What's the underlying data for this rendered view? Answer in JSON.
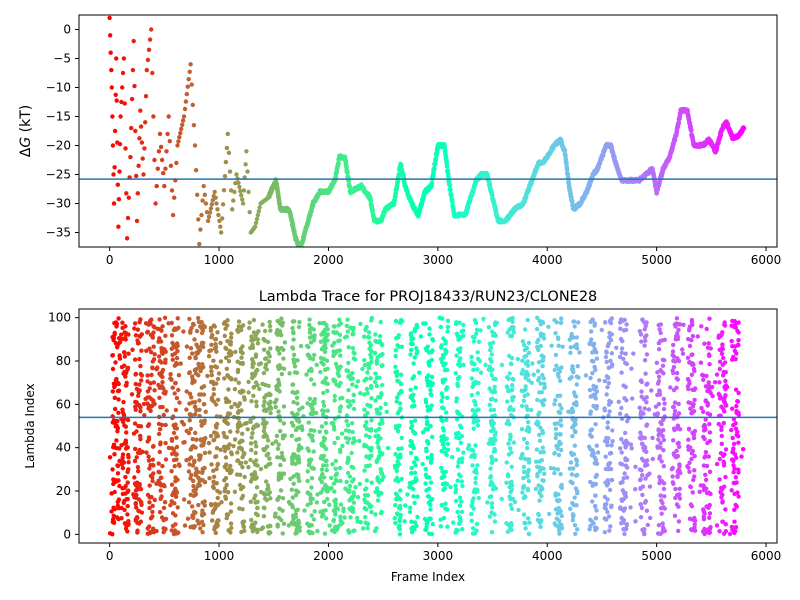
{
  "chart_data": [
    {
      "type": "scatter",
      "title": "",
      "xlabel": "",
      "ylabel": "ΔG (kT)",
      "ylabel_parts": {
        "symbol": "Δ",
        "variable": "G",
        "unit": " (kT)"
      },
      "xlim": [
        -280,
        6100
      ],
      "ylim": [
        -37.5,
        2.5
      ],
      "xticks": [
        0,
        1000,
        2000,
        3000,
        4000,
        5000,
        6000
      ],
      "xtick_labels": [
        "0",
        "1000",
        "2000",
        "3000",
        "4000",
        "5000",
        "6000"
      ],
      "yticks": [
        0,
        -5,
        -10,
        -15,
        -20,
        -25,
        -30,
        -35
      ],
      "ytick_labels": [
        "0",
        "−5",
        "−10",
        "−15",
        "−20",
        "−25",
        "−30",
        "−35"
      ],
      "hline": {
        "y": -25.8,
        "color": "#1f77b4"
      },
      "colormap": "rainbow_r",
      "color_by": "frame index",
      "grid": false,
      "trace_keypoints": [
        [
          0,
          2
        ],
        [
          20,
          -10
        ],
        [
          40,
          -30
        ],
        [
          60,
          -5
        ],
        [
          80,
          -34
        ],
        [
          100,
          -15
        ],
        [
          130,
          -5
        ],
        [
          160,
          -36
        ],
        [
          190,
          -22
        ],
        [
          220,
          -2
        ],
        [
          250,
          -33
        ],
        [
          280,
          -14
        ],
        [
          310,
          -25
        ],
        [
          340,
          -7
        ],
        [
          380,
          0
        ],
        [
          420,
          -30
        ],
        [
          460,
          -18
        ],
        [
          500,
          -27
        ],
        [
          540,
          -15
        ],
        [
          580,
          -32
        ],
        [
          620,
          -20
        ],
        [
          680,
          -15
        ],
        [
          740,
          -6
        ],
        [
          780,
          -20
        ],
        [
          820,
          -37
        ],
        [
          860,
          -27
        ],
        [
          900,
          -33
        ],
        [
          960,
          -28
        ],
        [
          1020,
          -35
        ],
        [
          1080,
          -18
        ],
        [
          1120,
          -31
        ],
        [
          1160,
          -25
        ],
        [
          1220,
          -30
        ],
        [
          1250,
          -21
        ],
        [
          1290,
          -35
        ],
        [
          1330,
          -34
        ],
        [
          1380,
          -30
        ],
        [
          1450,
          -29
        ],
        [
          1520,
          -26
        ],
        [
          1560,
          -31
        ],
        [
          1640,
          -31
        ],
        [
          1700,
          -36
        ],
        [
          1740,
          -38
        ],
        [
          1800,
          -34
        ],
        [
          1860,
          -30
        ],
        [
          1920,
          -28
        ],
        [
          2000,
          -28
        ],
        [
          2060,
          -26
        ],
        [
          2100,
          -22
        ],
        [
          2150,
          -22
        ],
        [
          2200,
          -28
        ],
        [
          2300,
          -27
        ],
        [
          2380,
          -29
        ],
        [
          2420,
          -33
        ],
        [
          2480,
          -33
        ],
        [
          2520,
          -31
        ],
        [
          2600,
          -30
        ],
        [
          2660,
          -23
        ],
        [
          2700,
          -27
        ],
        [
          2760,
          -30
        ],
        [
          2820,
          -32
        ],
        [
          2880,
          -28
        ],
        [
          2940,
          -27
        ],
        [
          3000,
          -20
        ],
        [
          3060,
          -20
        ],
        [
          3100,
          -26
        ],
        [
          3150,
          -32
        ],
        [
          3200,
          -32
        ],
        [
          3250,
          -32
        ],
        [
          3300,
          -29
        ],
        [
          3350,
          -26
        ],
        [
          3400,
          -25
        ],
        [
          3450,
          -25
        ],
        [
          3500,
          -29
        ],
        [
          3550,
          -33
        ],
        [
          3620,
          -33
        ],
        [
          3700,
          -31
        ],
        [
          3780,
          -30
        ],
        [
          3860,
          -26
        ],
        [
          3920,
          -23
        ],
        [
          3960,
          -23
        ],
        [
          4000,
          -22
        ],
        [
          4060,
          -20
        ],
        [
          4120,
          -19
        ],
        [
          4160,
          -21
        ],
        [
          4200,
          -27
        ],
        [
          4240,
          -31
        ],
        [
          4300,
          -30
        ],
        [
          4360,
          -28
        ],
        [
          4420,
          -25
        ],
        [
          4460,
          -24
        ],
        [
          4540,
          -20
        ],
        [
          4580,
          -20
        ],
        [
          4640,
          -24
        ],
        [
          4680,
          -26
        ],
        [
          4760,
          -26
        ],
        [
          4840,
          -26
        ],
        [
          4900,
          -25
        ],
        [
          4960,
          -24
        ],
        [
          5000,
          -28
        ],
        [
          5060,
          -24
        ],
        [
          5120,
          -22
        ],
        [
          5180,
          -18
        ],
        [
          5220,
          -14
        ],
        [
          5280,
          -14
        ],
        [
          5340,
          -20
        ],
        [
          5420,
          -20
        ],
        [
          5480,
          -19
        ],
        [
          5540,
          -21
        ],
        [
          5600,
          -17
        ],
        [
          5640,
          -16
        ],
        [
          5700,
          -19
        ],
        [
          5760,
          -18
        ],
        [
          5800,
          -17
        ]
      ]
    },
    {
      "type": "scatter",
      "title": "Lambda Trace for PROJ18433/RUN23/CLONE28",
      "xlabel": "Frame Index",
      "ylabel": "Lambda Index",
      "xlim": [
        -280,
        6100
      ],
      "ylim": [
        -4,
        104
      ],
      "xticks": [
        0,
        1000,
        2000,
        3000,
        4000,
        5000,
        6000
      ],
      "xtick_labels": [
        "0",
        "1000",
        "2000",
        "3000",
        "4000",
        "5000",
        "6000"
      ],
      "yticks": [
        0,
        20,
        40,
        60,
        80,
        100
      ],
      "ytick_labels": [
        "0",
        "20",
        "40",
        "60",
        "80",
        "100"
      ],
      "hline": {
        "y": 54,
        "color": "#1f77b4"
      },
      "colormap": "rainbow_r",
      "color_by": "frame index",
      "grid": false,
      "x_range": [
        0,
        5800
      ],
      "y_range": [
        0,
        100
      ],
      "column_centers": [
        60,
        140,
        260,
        380,
        480,
        600,
        760,
        840,
        960,
        1080,
        1200,
        1320,
        1440,
        1560,
        1700,
        1840,
        1960,
        2080,
        2200,
        2360,
        2460,
        2640,
        2780,
        2920,
        3060,
        3200,
        3340,
        3500,
        3660,
        3800,
        3940,
        4100,
        4240,
        4420,
        4560,
        4700,
        4880,
        5040,
        5180,
        5320,
        5460,
        5600,
        5720
      ]
    }
  ]
}
